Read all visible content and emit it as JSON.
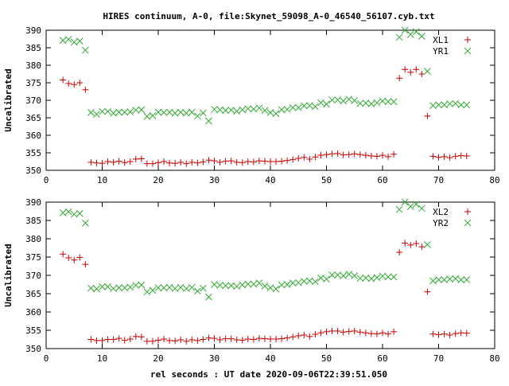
{
  "title": "HIRES continuum, A-0, file:Skynet_59098_A-0_46540_56107.cyb.txt",
  "xlabel": "rel seconds : UT date 2020-09-06T22:39:51.050",
  "colors": {
    "series_x": "#cc0000",
    "series_y": "#33aa33"
  },
  "chart_data": [
    {
      "type": "scatter",
      "ylabel": "Uncalibrated",
      "xlim": [
        0,
        80
      ],
      "ylim": [
        350,
        390
      ],
      "xticks": [
        0,
        10,
        20,
        30,
        40,
        50,
        60,
        70,
        80
      ],
      "yticks": [
        350,
        355,
        360,
        365,
        370,
        375,
        380,
        385,
        390
      ],
      "legend_position": "top-right",
      "grid": false,
      "series": [
        {
          "name": "XL1",
          "marker": "plus",
          "x": [
            3,
            4,
            5,
            6,
            7,
            8,
            9,
            10,
            11,
            12,
            13,
            14,
            15,
            16,
            17,
            18,
            19,
            20,
            21,
            22,
            23,
            24,
            25,
            26,
            27,
            28,
            29,
            30,
            31,
            32,
            33,
            34,
            35,
            36,
            37,
            38,
            39,
            40,
            41,
            42,
            43,
            44,
            45,
            46,
            47,
            48,
            49,
            50,
            51,
            52,
            53,
            54,
            55,
            56,
            57,
            58,
            59,
            60,
            61,
            62,
            63,
            64,
            65,
            66,
            67,
            68,
            69,
            70,
            71,
            72,
            73,
            74,
            75
          ],
          "y": [
            375.8,
            374.8,
            374.5,
            375.0,
            373.0,
            352.3,
            352.1,
            352.0,
            352.5,
            352.3,
            352.6,
            352.2,
            352.5,
            353.2,
            353.3,
            351.9,
            351.9,
            352.2,
            352.5,
            352.1,
            352.0,
            352.3,
            351.9,
            352.3,
            352.1,
            352.4,
            352.9,
            352.7,
            352.3,
            352.6,
            352.7,
            352.3,
            352.2,
            352.5,
            352.4,
            352.7,
            352.6,
            352.5,
            352.5,
            352.6,
            352.8,
            353.1,
            353.4,
            353.7,
            353.2,
            353.8,
            354.3,
            354.5,
            354.7,
            354.8,
            354.4,
            354.5,
            354.7,
            354.5,
            354.3,
            354.1,
            354.0,
            354.3,
            353.9,
            354.6,
            376.3,
            378.8,
            378.0,
            378.8,
            377.5,
            365.5,
            354.0,
            353.7,
            353.9,
            353.6,
            354.0,
            354.2,
            354.1
          ]
        },
        {
          "name": "YR1",
          "marker": "cross",
          "x": [
            3,
            4,
            5,
            6,
            7,
            8,
            9,
            10,
            11,
            12,
            13,
            14,
            15,
            16,
            17,
            18,
            19,
            20,
            21,
            22,
            23,
            24,
            25,
            26,
            27,
            28,
            29,
            30,
            31,
            32,
            33,
            34,
            35,
            36,
            37,
            38,
            39,
            40,
            41,
            42,
            43,
            44,
            45,
            46,
            47,
            48,
            49,
            50,
            51,
            52,
            53,
            54,
            55,
            56,
            57,
            58,
            59,
            60,
            61,
            62,
            63,
            64,
            65,
            66,
            67,
            68,
            69,
            70,
            71,
            72,
            73,
            74,
            75
          ],
          "y": [
            387.1,
            387.4,
            386.6,
            386.9,
            384.3,
            366.5,
            366.0,
            366.8,
            366.8,
            366.3,
            366.6,
            366.6,
            366.7,
            367.2,
            367.3,
            365.4,
            365.6,
            366.6,
            366.5,
            366.6,
            366.3,
            366.6,
            366.3,
            366.6,
            365.5,
            366.4,
            364.1,
            367.4,
            367.3,
            367.1,
            367.2,
            366.9,
            367.3,
            367.6,
            367.5,
            367.8,
            367.1,
            366.5,
            366.2,
            367.3,
            367.4,
            367.9,
            367.9,
            368.4,
            368.5,
            368.2,
            369.3,
            368.9,
            370.1,
            370.1,
            369.8,
            370.3,
            369.9,
            369.1,
            369.2,
            369.0,
            369.3,
            369.8,
            369.6,
            369.6,
            388.0,
            390.0,
            388.8,
            389.6,
            388.3,
            378.3,
            368.5,
            368.7,
            368.7,
            369.0,
            369.1,
            368.7,
            368.7
          ]
        }
      ]
    },
    {
      "type": "scatter",
      "ylabel": "Uncalibrated",
      "xlim": [
        0,
        80
      ],
      "ylim": [
        350,
        390
      ],
      "xticks": [
        0,
        10,
        20,
        30,
        40,
        50,
        60,
        70,
        80
      ],
      "yticks": [
        350,
        355,
        360,
        365,
        370,
        375,
        380,
        385,
        390
      ],
      "legend_position": "top-right",
      "grid": false,
      "series": [
        {
          "name": "XL2",
          "marker": "plus",
          "x": [
            3,
            4,
            5,
            6,
            7,
            8,
            9,
            10,
            11,
            12,
            13,
            14,
            15,
            16,
            17,
            18,
            19,
            20,
            21,
            22,
            23,
            24,
            25,
            26,
            27,
            28,
            29,
            30,
            31,
            32,
            33,
            34,
            35,
            36,
            37,
            38,
            39,
            40,
            41,
            42,
            43,
            44,
            45,
            46,
            47,
            48,
            49,
            50,
            51,
            52,
            53,
            54,
            55,
            56,
            57,
            58,
            59,
            60,
            61,
            62,
            63,
            64,
            65,
            66,
            67,
            68,
            69,
            70,
            71,
            72,
            73,
            74,
            75
          ],
          "y": [
            375.8,
            374.8,
            374.2,
            374.9,
            373.0,
            352.5,
            352.2,
            352.2,
            352.5,
            352.5,
            352.8,
            352.3,
            352.6,
            353.3,
            353.2,
            352.0,
            352.0,
            352.3,
            352.6,
            352.2,
            352.1,
            352.4,
            352.0,
            352.4,
            352.2,
            352.5,
            352.9,
            352.8,
            352.4,
            352.7,
            352.7,
            352.4,
            352.3,
            352.6,
            352.5,
            352.8,
            352.7,
            352.6,
            352.6,
            352.7,
            352.9,
            353.2,
            353.5,
            353.7,
            353.3,
            353.9,
            354.3,
            354.6,
            354.8,
            354.8,
            354.5,
            354.7,
            354.8,
            354.5,
            354.3,
            354.1,
            354.0,
            354.3,
            354.0,
            354.6,
            376.3,
            378.8,
            378.3,
            378.7,
            377.8,
            365.5,
            354.0,
            353.8,
            354.0,
            353.7,
            354.1,
            354.3,
            354.2
          ]
        },
        {
          "name": "YR2",
          "marker": "cross",
          "x": [
            3,
            4,
            5,
            6,
            7,
            8,
            9,
            10,
            11,
            12,
            13,
            14,
            15,
            16,
            17,
            18,
            19,
            20,
            21,
            22,
            23,
            24,
            25,
            26,
            27,
            28,
            29,
            30,
            31,
            32,
            33,
            34,
            35,
            36,
            37,
            38,
            39,
            40,
            41,
            42,
            43,
            44,
            45,
            46,
            47,
            48,
            49,
            50,
            51,
            52,
            53,
            54,
            55,
            56,
            57,
            58,
            59,
            60,
            61,
            62,
            63,
            64,
            65,
            66,
            67,
            68,
            69,
            70,
            71,
            72,
            73,
            74,
            75
          ],
          "y": [
            387.1,
            387.4,
            386.7,
            386.9,
            384.3,
            366.5,
            366.3,
            366.9,
            366.9,
            366.4,
            366.6,
            366.6,
            366.8,
            367.3,
            367.4,
            365.5,
            365.9,
            366.6,
            366.6,
            366.7,
            366.4,
            366.7,
            366.4,
            366.7,
            365.7,
            366.5,
            364.1,
            367.5,
            367.3,
            367.2,
            367.2,
            367.0,
            367.4,
            367.6,
            367.6,
            367.9,
            367.1,
            366.6,
            366.3,
            367.4,
            367.5,
            367.9,
            368.0,
            368.4,
            368.5,
            368.3,
            369.3,
            369.0,
            370.1,
            370.1,
            369.9,
            370.3,
            369.9,
            369.2,
            369.3,
            369.1,
            369.4,
            369.8,
            369.6,
            369.6,
            388.0,
            390.0,
            388.8,
            389.4,
            388.3,
            378.4,
            368.5,
            368.8,
            368.8,
            369.0,
            369.1,
            368.8,
            368.8
          ]
        }
      ]
    }
  ]
}
